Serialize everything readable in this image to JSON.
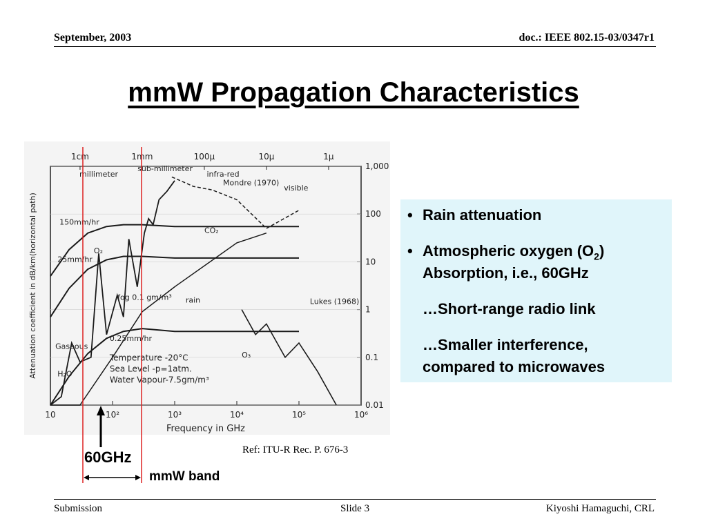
{
  "header": {
    "date": "September, 2003",
    "doc": "doc.: IEEE 802.15-03/0347r1"
  },
  "title": "mmW Propagation Characteristics",
  "bullets": {
    "b1": "Rain attenuation",
    "b2_pre": "Atmospheric oxygen (O",
    "b2_sub": "2",
    "b2_post": ")",
    "b2_line2": "Absorption, i.e., 60GHz",
    "b3": "…Short-range radio link",
    "b4_line1": "…Smaller interference,",
    "b4_line2": "compared to microwaves",
    "bullet_char": "•"
  },
  "ref": "Ref: ITU-R Rec. P. 676-3",
  "annotations": {
    "sixty_ghz": "60GHz",
    "mmw_band": "mmW band"
  },
  "footer": {
    "left": "Submission",
    "center": "Slide 3",
    "right": "Kiyoshi Hamaguchi, CRL"
  },
  "colors": {
    "marker_line": "#dd2222",
    "bullet_bg": "#e0f5fa"
  },
  "chart_data": {
    "type": "line",
    "xlabel": "Frequency in GHz",
    "ylabel": "Attenuation coefficient in dB/km(horizontal path)",
    "xscale": "log",
    "yscale": "log",
    "xlim": [
      10,
      1000000
    ],
    "ylim": [
      0.01,
      1000
    ],
    "x_ticks": [
      "10",
      "10²",
      "10³",
      "10⁴",
      "10⁵",
      "10⁶"
    ],
    "y_ticks": [
      "0.01",
      "0.1",
      "1",
      "10",
      "100",
      "1,000"
    ],
    "top_scale_labels": [
      "1cm",
      "1mm",
      "100μ",
      "10μ",
      "1μ"
    ],
    "band_labels": [
      "millimeter",
      "sub-millimeter",
      "infra-red",
      "visible"
    ],
    "curve_labels": [
      "150mm/hr",
      "25mm/hr",
      "0.25mm/hr",
      "rain",
      "Gaseous",
      "fog 0.1 gm/m³",
      "Mondre (1970)",
      "Lukes (1968)",
      "H₂O",
      "O₂",
      "CO₂",
      "O₃"
    ],
    "conditions": [
      "Temperature -20°C",
      "Sea Level -p=1atm.",
      "Water Vapour-7.5gm/m³"
    ],
    "series": [
      {
        "name": "150mm/hr",
        "x": [
          10,
          20,
          40,
          80,
          150,
          300,
          1000,
          100000
        ],
        "y": [
          5,
          18,
          40,
          55,
          60,
          60,
          55,
          55
        ]
      },
      {
        "name": "25mm/hr",
        "x": [
          10,
          20,
          40,
          80,
          150,
          300,
          1000,
          100000
        ],
        "y": [
          0.7,
          2.8,
          7,
          11,
          13,
          13,
          12,
          12
        ]
      },
      {
        "name": "0.25mm/hr",
        "x": [
          10,
          20,
          40,
          80,
          150,
          300,
          1000,
          100000
        ],
        "y": [
          0.008,
          0.04,
          0.12,
          0.25,
          0.35,
          0.4,
          0.35,
          0.35
        ]
      },
      {
        "name": "Gaseous",
        "x": [
          10,
          15,
          22,
          30,
          45,
          60,
          80,
          119,
          150,
          183,
          250,
          325,
          380,
          450,
          560,
          750,
          1000
        ],
        "y": [
          0.01,
          0.015,
          0.2,
          0.08,
          0.1,
          15,
          0.3,
          2,
          0.7,
          30,
          3,
          40,
          80,
          60,
          200,
          300,
          500
        ]
      },
      {
        "name": "fog 0.1 gm/m³",
        "x": [
          10,
          30,
          100,
          300,
          1000,
          10000,
          30000
        ],
        "y": [
          0.001,
          0.01,
          0.1,
          0.9,
          3,
          25,
          40
        ]
      },
      {
        "name": "Mondre (1970)",
        "x": [
          900,
          2000,
          4000,
          10000,
          30000,
          100000
        ],
        "y": [
          600,
          380,
          320,
          200,
          50,
          120
        ]
      },
      {
        "name": "Lukes (1968)",
        "x": [
          12000,
          20000,
          30000,
          60000,
          100000,
          200000,
          400000
        ],
        "y": [
          1,
          0.3,
          0.5,
          0.1,
          0.2,
          0.05,
          0.01
        ]
      }
    ]
  }
}
